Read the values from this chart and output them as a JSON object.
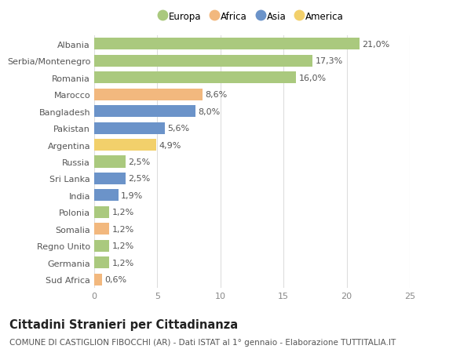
{
  "countries": [
    "Albania",
    "Serbia/Montenegro",
    "Romania",
    "Marocco",
    "Bangladesh",
    "Pakistan",
    "Argentina",
    "Russia",
    "Sri Lanka",
    "India",
    "Polonia",
    "Somalia",
    "Regno Unito",
    "Germania",
    "Sud Africa"
  ],
  "values": [
    21.0,
    17.3,
    16.0,
    8.6,
    8.0,
    5.6,
    4.9,
    2.5,
    2.5,
    1.9,
    1.2,
    1.2,
    1.2,
    1.2,
    0.6
  ],
  "labels": [
    "21,0%",
    "17,3%",
    "16,0%",
    "8,6%",
    "8,0%",
    "5,6%",
    "4,9%",
    "2,5%",
    "2,5%",
    "1,9%",
    "1,2%",
    "1,2%",
    "1,2%",
    "1,2%",
    "0,6%"
  ],
  "continents": [
    "Europa",
    "Europa",
    "Europa",
    "Africa",
    "Asia",
    "Asia",
    "America",
    "Europa",
    "Asia",
    "Asia",
    "Europa",
    "Africa",
    "Europa",
    "Europa",
    "Africa"
  ],
  "continent_colors": {
    "Europa": "#aac97e",
    "Africa": "#f2b87e",
    "Asia": "#6b93c9",
    "America": "#f2d06b"
  },
  "legend_order": [
    "Europa",
    "Africa",
    "Asia",
    "America"
  ],
  "title": "Cittadini Stranieri per Cittadinanza",
  "subtitle": "COMUNE DI CASTIGLION FIBOCCHI (AR) - Dati ISTAT al 1° gennaio - Elaborazione TUTTITALIA.IT",
  "xlim": [
    0,
    25
  ],
  "xticks": [
    0,
    5,
    10,
    15,
    20,
    25
  ],
  "background_color": "#ffffff",
  "grid_color": "#dddddd",
  "bar_height": 0.7,
  "label_fontsize": 8.0,
  "tick_fontsize": 8.0,
  "title_fontsize": 10.5,
  "subtitle_fontsize": 7.5
}
